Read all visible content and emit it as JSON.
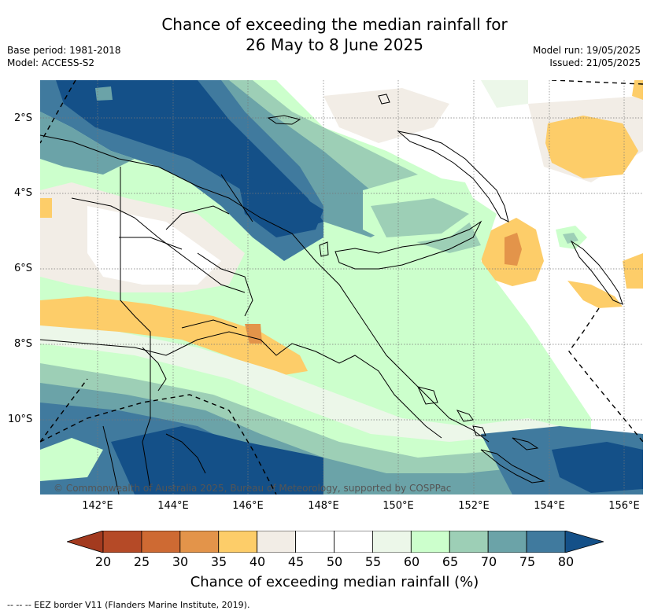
{
  "title_line1": "Chance of exceeding the median rainfall for",
  "title_line2": "26 May to 8 June 2025",
  "base_period": "Base period: 1981-2018",
  "model": "Model: ACCESS-S2",
  "model_run": "Model run: 19/05/2025",
  "issued": "Issued: 21/05/2025",
  "lat_labels": [
    "2°S",
    "4°S",
    "6°S",
    "8°S",
    "10°S"
  ],
  "lon_labels": [
    "142°E",
    "144°E",
    "146°E",
    "148°E",
    "150°E",
    "152°E",
    "154°E",
    "156°E"
  ],
  "copyright": "© Commonwealth of Australia 2025, Bureau of Meteorology, supported by COSPPac",
  "colorbar": {
    "ticks": [
      "20",
      "25",
      "30",
      "35",
      "40",
      "45",
      "50",
      "55",
      "60",
      "65",
      "70",
      "75",
      "80"
    ],
    "label": "Chance of exceeding median rainfall (%)",
    "colors": [
      "#b54a27",
      "#ce6a33",
      "#e3944a",
      "#fdcd69",
      "#f2ede6",
      "#ffffff",
      "#ffffff",
      "#ecf7e9",
      "#ccffcc",
      "#9dcfb6",
      "#6ba3a8",
      "#407a9e"
    ],
    "under_color": "#a33a1f",
    "over_color": "#145088"
  },
  "legend": "-- -- -- EEZ border V11 (Flanders Marine Institute, 2019)."
}
